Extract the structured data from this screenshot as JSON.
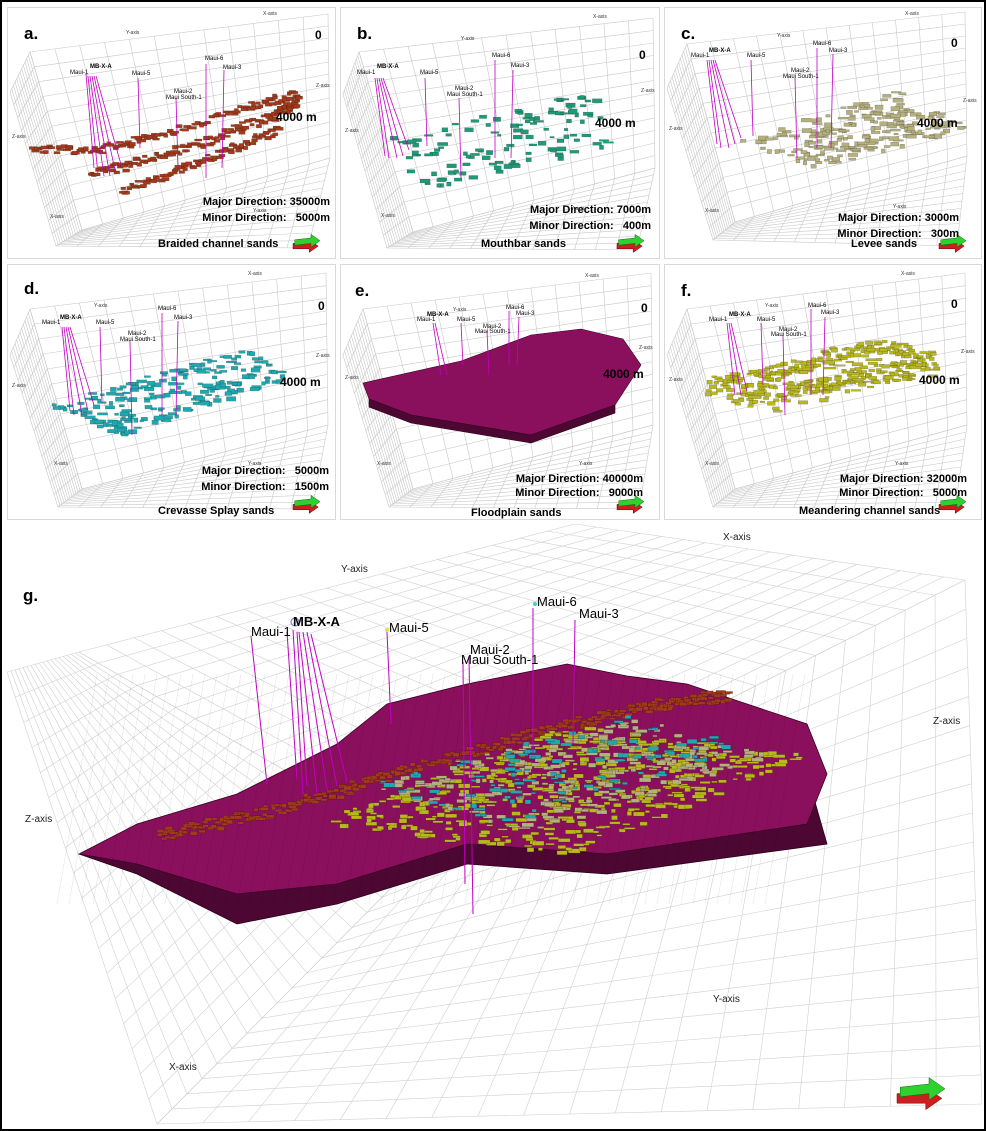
{
  "wells": [
    "Maui-1",
    "MB-X-A",
    "Maui-5",
    "Maui-2",
    "Maui South-1",
    "Maui-6",
    "Maui-3"
  ],
  "axes": {
    "x": "X-axis",
    "y": "Y-axis",
    "z": "Z-axis"
  },
  "depth_top": "0",
  "depth_bottom": "4000 m",
  "panels": [
    {
      "id": "a",
      "label": "a.",
      "name": "Braided channel sands",
      "major": "Major Direction: 35000m",
      "minor": "Minor Direction:   5000m",
      "color": "#a33a1c"
    },
    {
      "id": "b",
      "label": "b.",
      "name": "Mouthbar sands",
      "major": "Major Direction: 7000m",
      "minor": "Minor Direction:   400m",
      "color": "#1f9a78"
    },
    {
      "id": "c",
      "label": "c.",
      "name": "Levee sands",
      "major": "Major Direction: 3000m",
      "minor": "Minor Direction:   300m",
      "color": "#b5b07e"
    },
    {
      "id": "d",
      "label": "d.",
      "name": "Crevasse Splay sands",
      "major": "Major Direction:   5000m",
      "minor": "Minor Direction:   1500m",
      "color": "#20a8b0"
    },
    {
      "id": "e",
      "label": "e.",
      "name": "Floodplain sands",
      "major": "Major Direction: 40000m",
      "minor": "Minor Direction:   9000m",
      "color": "#8a0f5c"
    },
    {
      "id": "f",
      "label": "f.",
      "name": "Meandering channel sands",
      "major": "Major Direction: 32000m",
      "minor": "Minor Direction:   5000m",
      "color": "#b9b81e"
    }
  ],
  "combined": {
    "label": "g."
  }
}
